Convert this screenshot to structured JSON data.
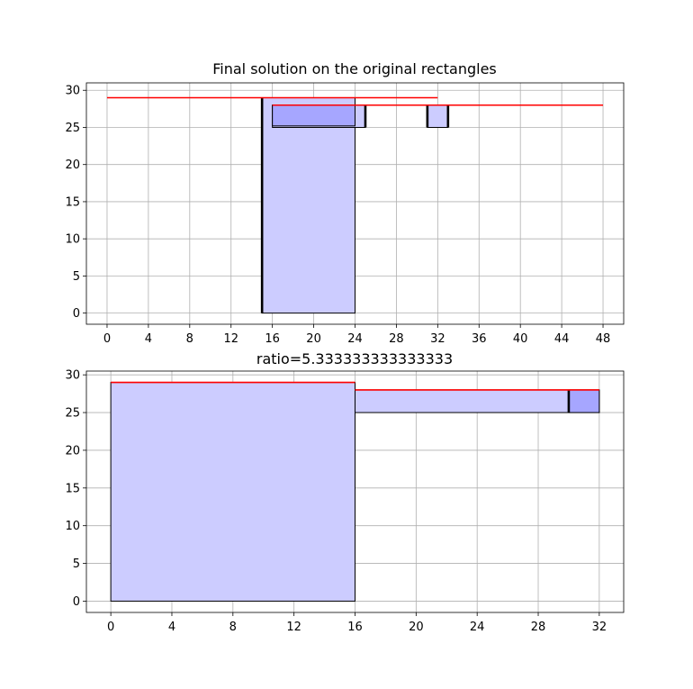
{
  "chart_data": [
    {
      "type": "rectangles",
      "title": "Final solution on the original rectangles",
      "xlim": [
        -2,
        50
      ],
      "ylim": [
        -1.5,
        31
      ],
      "xticks": [
        0,
        4,
        8,
        12,
        16,
        20,
        24,
        28,
        32,
        36,
        40,
        44,
        48
      ],
      "yticks": [
        0,
        5,
        10,
        15,
        20,
        25,
        30
      ],
      "grid": true,
      "colors": {
        "fill": "#ccccff",
        "fill_dark": "#a6a6ff",
        "line": "#ff0000",
        "edge": "#000000"
      },
      "rects": [
        {
          "x": 15,
          "y": 0,
          "w": 9,
          "h": 29,
          "fill": "light",
          "thick_sides": [
            "left"
          ]
        },
        {
          "x": 16,
          "y": 25,
          "w": 9,
          "h": 3,
          "fill": "light",
          "thick_sides": [
            "right"
          ]
        },
        {
          "x": 16,
          "y": 25.2,
          "w": 8,
          "h": 2.8,
          "fill": "dark",
          "thick_sides": []
        },
        {
          "x": 31,
          "y": 25,
          "w": 2,
          "h": 3,
          "fill": "light",
          "thick_sides": [
            "left",
            "right"
          ]
        }
      ],
      "lines": [
        {
          "x1": 0,
          "x2": 32,
          "y": 29
        },
        {
          "x1": 16,
          "x2": 48,
          "y": 28
        }
      ]
    },
    {
      "type": "rectangles",
      "title": "ratio=5.333333333333333",
      "xlim": [
        -1.6,
        33.6
      ],
      "ylim": [
        -1.5,
        30.5
      ],
      "xticks": [
        0,
        4,
        8,
        12,
        16,
        20,
        24,
        28,
        32
      ],
      "yticks": [
        0,
        5,
        10,
        15,
        20,
        25,
        30
      ],
      "grid": true,
      "colors": {
        "fill": "#ccccff",
        "fill_dark": "#a6a6ff",
        "line": "#ff0000",
        "edge": "#000000"
      },
      "rects": [
        {
          "x": 0,
          "y": 0,
          "w": 16,
          "h": 29,
          "fill": "light",
          "thick_sides": []
        },
        {
          "x": 16,
          "y": 25,
          "w": 16,
          "h": 3,
          "fill": "light",
          "thick_sides": []
        },
        {
          "x": 30,
          "y": 25,
          "w": 2,
          "h": 3,
          "fill": "dark",
          "thick_sides": [
            "left"
          ]
        }
      ],
      "lines": [
        {
          "x1": 0,
          "x2": 16,
          "y": 29
        },
        {
          "x1": 16,
          "x2": 32,
          "y": 28
        }
      ]
    }
  ]
}
